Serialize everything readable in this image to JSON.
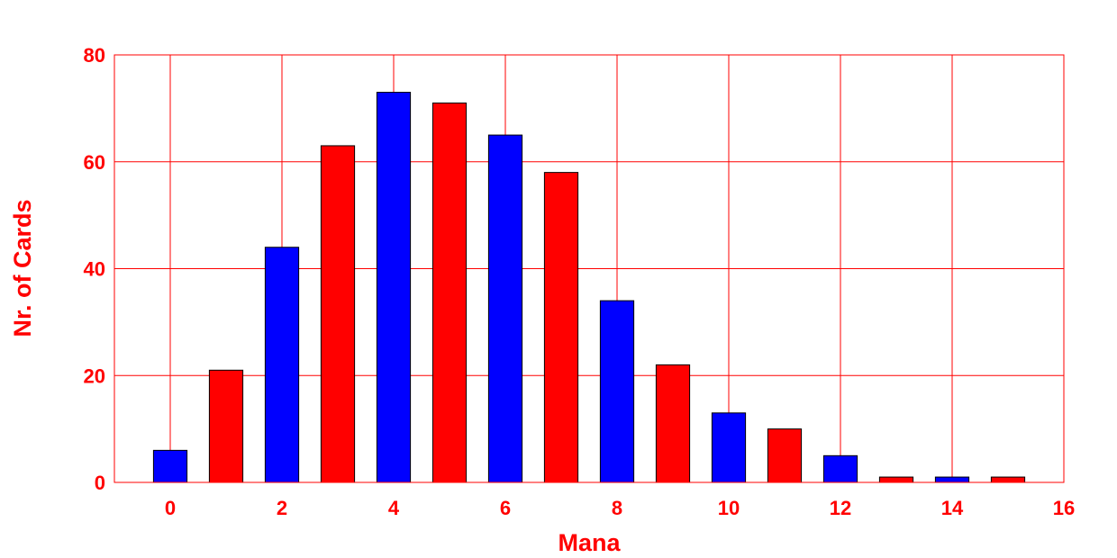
{
  "chart_data": {
    "type": "bar",
    "title": "",
    "xlabel": "Mana",
    "ylabel": "Nr. of Cards",
    "x": [
      0,
      1,
      2,
      3,
      4,
      5,
      6,
      7,
      8,
      9,
      10,
      11,
      12,
      13,
      14,
      15
    ],
    "values": [
      6,
      21,
      44,
      63,
      73,
      71,
      65,
      58,
      34,
      22,
      13,
      10,
      5,
      1,
      1,
      1
    ],
    "bar_colors": [
      "#0000ff",
      "#ff0000",
      "#0000ff",
      "#ff0000",
      "#0000ff",
      "#ff0000",
      "#0000ff",
      "#ff0000",
      "#0000ff",
      "#ff0000",
      "#0000ff",
      "#ff0000",
      "#0000ff",
      "#ff0000",
      "#0000ff",
      "#ff0000"
    ],
    "xlim": [
      -1,
      16
    ],
    "ylim": [
      0,
      80
    ],
    "xticks": [
      0,
      2,
      4,
      6,
      8,
      10,
      12,
      14,
      16
    ],
    "yticks": [
      0,
      20,
      40,
      60,
      80
    ],
    "grid": true,
    "label_color": "#ff0000",
    "grid_color": "#ff0000"
  }
}
